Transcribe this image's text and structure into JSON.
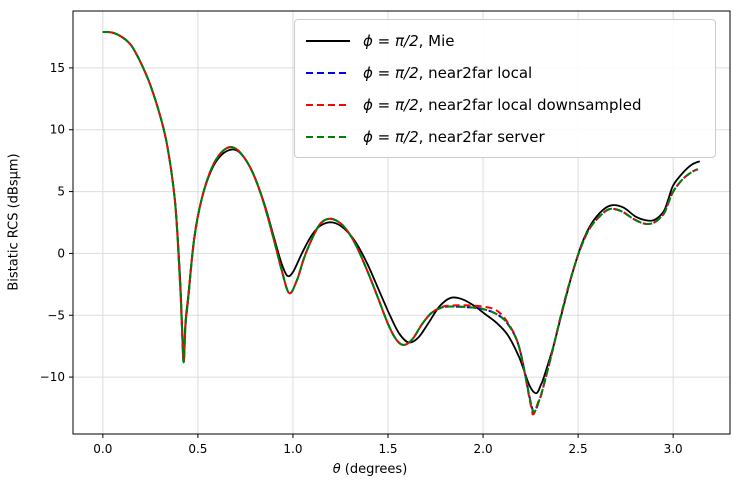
{
  "chart_data": {
    "type": "line",
    "title": "",
    "xlabel_math": "θ",
    "xlabel_rest": " (degrees)",
    "ylabel": "Bistatic RCS (dBsμm)",
    "xlim": [
      -0.157,
      3.299
    ],
    "ylim": [
      -14.6,
      19.6
    ],
    "grid": true,
    "legend_position": "upper right",
    "xticks": {
      "values": [
        0.0,
        0.5,
        1.0,
        1.5,
        2.0,
        2.5,
        3.0
      ],
      "labels": [
        "0.0",
        "0.5",
        "1.0",
        "1.5",
        "2.0",
        "2.5",
        "3.0"
      ]
    },
    "yticks": {
      "values": [
        -10,
        -5,
        0,
        5,
        10,
        15
      ],
      "labels": [
        "−10",
        "−5",
        "0",
        "5",
        "10",
        "15"
      ]
    },
    "series": [
      {
        "name": "mie",
        "label_math": "ϕ = π/2",
        "label_rest": ", Mie",
        "color": "#000000",
        "style": "solid",
        "points": [
          [
            0.0,
            17.9
          ],
          [
            0.05,
            17.85
          ],
          [
            0.1,
            17.5
          ],
          [
            0.15,
            16.8
          ],
          [
            0.2,
            15.4
          ],
          [
            0.25,
            13.6
          ],
          [
            0.3,
            11.2
          ],
          [
            0.34,
            8.6
          ],
          [
            0.38,
            4.2
          ],
          [
            0.405,
            -1.5
          ],
          [
            0.415,
            -5.0
          ],
          [
            0.425,
            -8.5
          ],
          [
            0.435,
            -5.5
          ],
          [
            0.45,
            -3.3
          ],
          [
            0.48,
            1.2
          ],
          [
            0.52,
            4.4
          ],
          [
            0.57,
            6.7
          ],
          [
            0.62,
            7.9
          ],
          [
            0.68,
            8.4
          ],
          [
            0.73,
            8.0
          ],
          [
            0.79,
            6.5
          ],
          [
            0.85,
            4.0
          ],
          [
            0.9,
            1.3
          ],
          [
            0.94,
            -0.8
          ],
          [
            0.97,
            -1.8
          ],
          [
            1.0,
            -1.5
          ],
          [
            1.05,
            0.1
          ],
          [
            1.1,
            1.5
          ],
          [
            1.15,
            2.3
          ],
          [
            1.21,
            2.5
          ],
          [
            1.27,
            2.0
          ],
          [
            1.33,
            0.9
          ],
          [
            1.39,
            -0.8
          ],
          [
            1.45,
            -2.9
          ],
          [
            1.51,
            -5.0
          ],
          [
            1.56,
            -6.5
          ],
          [
            1.61,
            -7.2
          ],
          [
            1.66,
            -6.8
          ],
          [
            1.71,
            -5.7
          ],
          [
            1.77,
            -4.3
          ],
          [
            1.83,
            -3.6
          ],
          [
            1.89,
            -3.7
          ],
          [
            1.95,
            -4.2
          ],
          [
            2.01,
            -4.9
          ],
          [
            2.07,
            -5.6
          ],
          [
            2.13,
            -6.6
          ],
          [
            2.19,
            -8.4
          ],
          [
            2.245,
            -10.7
          ],
          [
            2.28,
            -11.3
          ],
          [
            2.305,
            -10.6
          ],
          [
            2.32,
            -10.0
          ],
          [
            2.37,
            -7.5
          ],
          [
            2.42,
            -4.5
          ],
          [
            2.47,
            -1.6
          ],
          [
            2.52,
            0.8
          ],
          [
            2.57,
            2.4
          ],
          [
            2.63,
            3.5
          ],
          [
            2.68,
            3.9
          ],
          [
            2.74,
            3.7
          ],
          [
            2.8,
            3.0
          ],
          [
            2.85,
            2.7
          ],
          [
            2.9,
            2.7
          ],
          [
            2.95,
            3.4
          ],
          [
            2.975,
            4.4
          ],
          [
            3.0,
            5.5
          ],
          [
            3.05,
            6.5
          ],
          [
            3.1,
            7.2
          ],
          [
            3.14,
            7.45
          ]
        ]
      },
      {
        "name": "near2far-local",
        "label_math": "ϕ = π/2",
        "label_rest": ", near2far local",
        "color": "#0000ee",
        "style": "dashed",
        "points": [
          [
            0.0,
            17.9
          ],
          [
            0.05,
            17.85
          ],
          [
            0.1,
            17.5
          ],
          [
            0.15,
            16.8
          ],
          [
            0.2,
            15.4
          ],
          [
            0.25,
            13.6
          ],
          [
            0.3,
            11.2
          ],
          [
            0.34,
            8.6
          ],
          [
            0.38,
            4.1
          ],
          [
            0.405,
            -2.0
          ],
          [
            0.415,
            -5.5
          ],
          [
            0.425,
            -8.8
          ],
          [
            0.435,
            -5.8
          ],
          [
            0.45,
            -3.5
          ],
          [
            0.48,
            1.1
          ],
          [
            0.52,
            4.4
          ],
          [
            0.57,
            6.8
          ],
          [
            0.62,
            8.1
          ],
          [
            0.67,
            8.6
          ],
          [
            0.72,
            8.2
          ],
          [
            0.78,
            6.8
          ],
          [
            0.84,
            4.4
          ],
          [
            0.9,
            1.1
          ],
          [
            0.94,
            -1.3
          ],
          [
            0.98,
            -3.2
          ],
          [
            1.02,
            -2.2
          ],
          [
            1.06,
            -0.3
          ],
          [
            1.11,
            1.5
          ],
          [
            1.15,
            2.5
          ],
          [
            1.2,
            2.8
          ],
          [
            1.26,
            2.3
          ],
          [
            1.32,
            1.0
          ],
          [
            1.38,
            -1.0
          ],
          [
            1.44,
            -3.3
          ],
          [
            1.5,
            -5.7
          ],
          [
            1.545,
            -7.0
          ],
          [
            1.585,
            -7.4
          ],
          [
            1.63,
            -6.9
          ],
          [
            1.68,
            -5.7
          ],
          [
            1.73,
            -4.8
          ],
          [
            1.79,
            -4.35
          ],
          [
            1.85,
            -4.3
          ],
          [
            1.92,
            -4.35
          ],
          [
            2.0,
            -4.5
          ],
          [
            2.07,
            -4.9
          ],
          [
            2.13,
            -5.7
          ],
          [
            2.19,
            -7.6
          ],
          [
            2.25,
            -12.0
          ],
          [
            2.27,
            -12.8
          ],
          [
            2.295,
            -11.9
          ],
          [
            2.31,
            -11.2
          ],
          [
            2.36,
            -8.2
          ],
          [
            2.41,
            -5.0
          ],
          [
            2.46,
            -2.1
          ],
          [
            2.51,
            0.3
          ],
          [
            2.56,
            2.0
          ],
          [
            2.62,
            3.1
          ],
          [
            2.67,
            3.6
          ],
          [
            2.73,
            3.4
          ],
          [
            2.79,
            2.8
          ],
          [
            2.85,
            2.4
          ],
          [
            2.9,
            2.5
          ],
          [
            2.95,
            3.2
          ],
          [
            2.975,
            4.1
          ],
          [
            3.0,
            5.0
          ],
          [
            3.05,
            6.0
          ],
          [
            3.1,
            6.6
          ],
          [
            3.13,
            6.8
          ]
        ]
      },
      {
        "name": "near2far-local-downsampled",
        "label_math": "ϕ = π/2",
        "label_rest": ", near2far local downsampled",
        "color": "#ff0000",
        "style": "dashed",
        "points": [
          [
            0.0,
            17.9
          ],
          [
            0.05,
            17.85
          ],
          [
            0.1,
            17.5
          ],
          [
            0.15,
            16.8
          ],
          [
            0.2,
            15.4
          ],
          [
            0.25,
            13.6
          ],
          [
            0.3,
            11.2
          ],
          [
            0.34,
            8.6
          ],
          [
            0.38,
            4.1
          ],
          [
            0.405,
            -2.0
          ],
          [
            0.415,
            -5.5
          ],
          [
            0.425,
            -8.8
          ],
          [
            0.435,
            -5.8
          ],
          [
            0.45,
            -3.5
          ],
          [
            0.48,
            1.1
          ],
          [
            0.52,
            4.4
          ],
          [
            0.57,
            6.8
          ],
          [
            0.62,
            8.1
          ],
          [
            0.67,
            8.6
          ],
          [
            0.72,
            8.2
          ],
          [
            0.78,
            6.8
          ],
          [
            0.84,
            4.4
          ],
          [
            0.9,
            1.1
          ],
          [
            0.94,
            -1.3
          ],
          [
            0.98,
            -3.2
          ],
          [
            1.02,
            -2.2
          ],
          [
            1.06,
            -0.3
          ],
          [
            1.11,
            1.5
          ],
          [
            1.15,
            2.5
          ],
          [
            1.2,
            2.8
          ],
          [
            1.26,
            2.3
          ],
          [
            1.32,
            1.0
          ],
          [
            1.38,
            -1.0
          ],
          [
            1.44,
            -3.3
          ],
          [
            1.5,
            -5.7
          ],
          [
            1.545,
            -7.0
          ],
          [
            1.585,
            -7.4
          ],
          [
            1.63,
            -6.9
          ],
          [
            1.68,
            -5.7
          ],
          [
            1.73,
            -4.8
          ],
          [
            1.79,
            -4.3
          ],
          [
            1.85,
            -4.2
          ],
          [
            1.92,
            -4.2
          ],
          [
            2.0,
            -4.3
          ],
          [
            2.07,
            -4.6
          ],
          [
            2.13,
            -5.6
          ],
          [
            2.19,
            -7.6
          ],
          [
            2.25,
            -12.2
          ],
          [
            2.265,
            -13.0
          ],
          [
            2.29,
            -12.0
          ],
          [
            2.31,
            -11.2
          ],
          [
            2.36,
            -8.2
          ],
          [
            2.41,
            -5.0
          ],
          [
            2.46,
            -2.1
          ],
          [
            2.51,
            0.3
          ],
          [
            2.56,
            2.0
          ],
          [
            2.62,
            3.1
          ],
          [
            2.67,
            3.6
          ],
          [
            2.73,
            3.4
          ],
          [
            2.79,
            2.8
          ],
          [
            2.85,
            2.4
          ],
          [
            2.9,
            2.5
          ],
          [
            2.95,
            3.2
          ],
          [
            2.975,
            4.1
          ],
          [
            3.0,
            5.0
          ],
          [
            3.05,
            6.0
          ],
          [
            3.1,
            6.6
          ],
          [
            3.13,
            6.8
          ]
        ]
      },
      {
        "name": "near2far-server",
        "label_math": "ϕ = π/2",
        "label_rest": ", near2far server",
        "color": "#008000",
        "style": "dashed",
        "points": [
          [
            0.0,
            17.9
          ],
          [
            0.05,
            17.85
          ],
          [
            0.1,
            17.5
          ],
          [
            0.15,
            16.8
          ],
          [
            0.2,
            15.4
          ],
          [
            0.25,
            13.6
          ],
          [
            0.3,
            11.2
          ],
          [
            0.34,
            8.6
          ],
          [
            0.38,
            4.1
          ],
          [
            0.405,
            -2.0
          ],
          [
            0.415,
            -5.5
          ],
          [
            0.425,
            -8.8
          ],
          [
            0.435,
            -5.8
          ],
          [
            0.45,
            -3.5
          ],
          [
            0.48,
            1.1
          ],
          [
            0.52,
            4.4
          ],
          [
            0.57,
            6.8
          ],
          [
            0.62,
            8.1
          ],
          [
            0.67,
            8.6
          ],
          [
            0.72,
            8.2
          ],
          [
            0.78,
            6.8
          ],
          [
            0.84,
            4.4
          ],
          [
            0.9,
            1.1
          ],
          [
            0.94,
            -1.3
          ],
          [
            0.98,
            -3.2
          ],
          [
            1.02,
            -2.2
          ],
          [
            1.06,
            -0.3
          ],
          [
            1.11,
            1.5
          ],
          [
            1.15,
            2.5
          ],
          [
            1.2,
            2.8
          ],
          [
            1.26,
            2.3
          ],
          [
            1.32,
            1.0
          ],
          [
            1.38,
            -1.0
          ],
          [
            1.44,
            -3.3
          ],
          [
            1.5,
            -5.7
          ],
          [
            1.545,
            -7.0
          ],
          [
            1.585,
            -7.4
          ],
          [
            1.63,
            -6.9
          ],
          [
            1.68,
            -5.7
          ],
          [
            1.73,
            -4.8
          ],
          [
            1.79,
            -4.35
          ],
          [
            1.85,
            -4.3
          ],
          [
            1.92,
            -4.35
          ],
          [
            2.0,
            -4.5
          ],
          [
            2.07,
            -4.9
          ],
          [
            2.13,
            -5.7
          ],
          [
            2.19,
            -7.6
          ],
          [
            2.25,
            -12.0
          ],
          [
            2.27,
            -12.8
          ],
          [
            2.295,
            -11.9
          ],
          [
            2.31,
            -11.2
          ],
          [
            2.36,
            -8.2
          ],
          [
            2.41,
            -5.0
          ],
          [
            2.46,
            -2.1
          ],
          [
            2.51,
            0.3
          ],
          [
            2.56,
            2.0
          ],
          [
            2.62,
            3.1
          ],
          [
            2.67,
            3.6
          ],
          [
            2.73,
            3.4
          ],
          [
            2.79,
            2.8
          ],
          [
            2.85,
            2.4
          ],
          [
            2.9,
            2.5
          ],
          [
            2.95,
            3.2
          ],
          [
            2.975,
            4.1
          ],
          [
            3.0,
            5.0
          ],
          [
            3.05,
            6.0
          ],
          [
            3.1,
            6.6
          ],
          [
            3.13,
            6.8
          ]
        ]
      }
    ]
  },
  "colors": {
    "background": "#ffffff",
    "grid": "#dddddd",
    "spine": "#000000",
    "tick_label": "#000000"
  }
}
